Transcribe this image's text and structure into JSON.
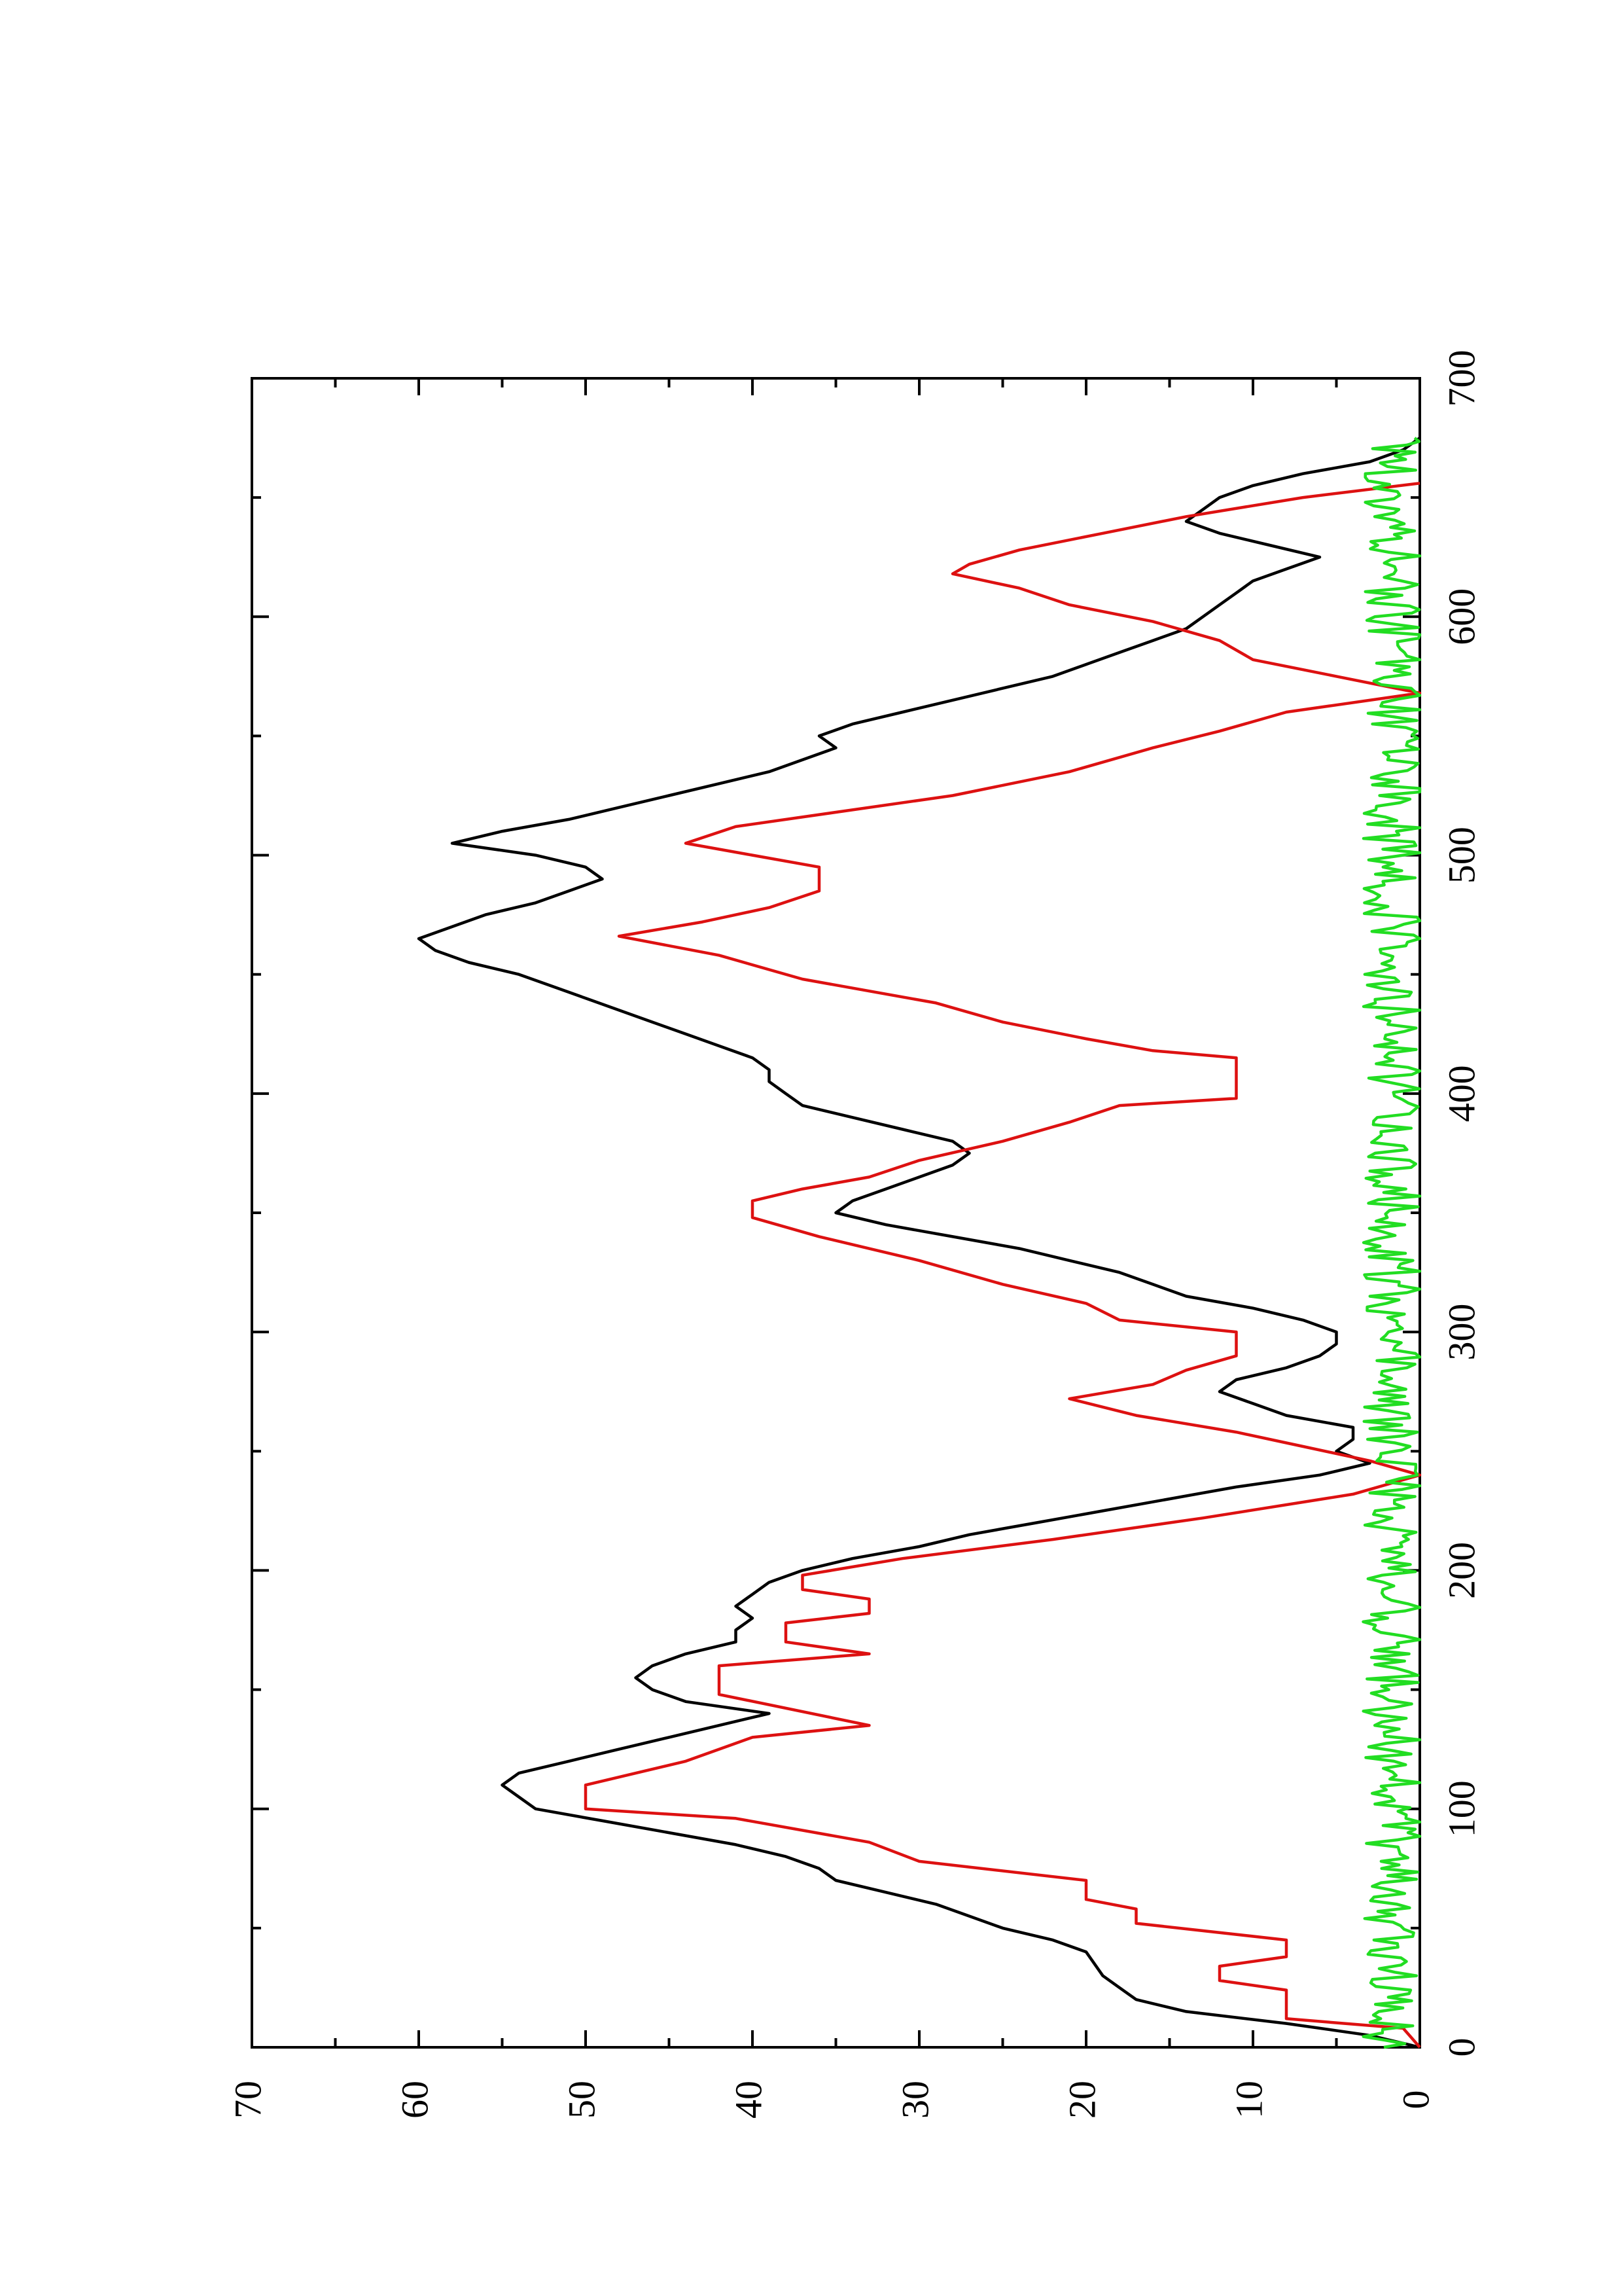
{
  "chart_data": {
    "type": "line",
    "orientation": "rotated-90-ccw",
    "title": "",
    "xlabel": "",
    "ylabel": "",
    "xlim": [
      0,
      700
    ],
    "ylim": [
      0,
      70
    ],
    "x_ticks": [
      "0",
      "100",
      "200",
      "300",
      "400",
      "500",
      "600",
      "700"
    ],
    "y_ticks": [
      "0",
      "10",
      "20",
      "30",
      "40",
      "50",
      "60",
      "70"
    ],
    "grid": false,
    "legend": "none",
    "series": [
      {
        "color": "#000000",
        "points": [
          [
            0,
            0
          ],
          [
            5,
            3
          ],
          [
            10,
            8
          ],
          [
            15,
            14
          ],
          [
            20,
            17
          ],
          [
            25,
            18
          ],
          [
            30,
            19
          ],
          [
            40,
            20
          ],
          [
            45,
            22
          ],
          [
            50,
            25
          ],
          [
            55,
            27
          ],
          [
            60,
            29
          ],
          [
            65,
            32
          ],
          [
            70,
            35
          ],
          [
            75,
            36
          ],
          [
            80,
            38
          ],
          [
            85,
            41
          ],
          [
            90,
            45
          ],
          [
            95,
            49
          ],
          [
            100,
            53
          ],
          [
            105,
            54
          ],
          [
            110,
            55
          ],
          [
            115,
            54
          ],
          [
            120,
            51
          ],
          [
            125,
            48
          ],
          [
            130,
            45
          ],
          [
            135,
            42
          ],
          [
            140,
            39
          ],
          [
            145,
            44
          ],
          [
            150,
            46
          ],
          [
            155,
            47
          ],
          [
            160,
            46
          ],
          [
            165,
            44
          ],
          [
            170,
            41
          ],
          [
            175,
            41
          ],
          [
            180,
            40
          ],
          [
            185,
            41
          ],
          [
            190,
            40
          ],
          [
            195,
            39
          ],
          [
            200,
            37
          ],
          [
            205,
            34
          ],
          [
            210,
            30
          ],
          [
            215,
            27
          ],
          [
            220,
            23
          ],
          [
            225,
            19
          ],
          [
            230,
            15
          ],
          [
            235,
            11
          ],
          [
            240,
            6
          ],
          [
            245,
            3
          ],
          [
            250,
            5
          ],
          [
            255,
            4
          ],
          [
            260,
            4
          ],
          [
            265,
            8
          ],
          [
            270,
            10
          ],
          [
            275,
            12
          ],
          [
            280,
            11
          ],
          [
            285,
            8
          ],
          [
            290,
            6
          ],
          [
            295,
            5
          ],
          [
            300,
            5
          ],
          [
            305,
            7
          ],
          [
            310,
            10
          ],
          [
            315,
            14
          ],
          [
            320,
            16
          ],
          [
            325,
            18
          ],
          [
            330,
            21
          ],
          [
            335,
            24
          ],
          [
            340,
            28
          ],
          [
            345,
            32
          ],
          [
            350,
            35
          ],
          [
            355,
            34
          ],
          [
            360,
            32
          ],
          [
            365,
            30
          ],
          [
            370,
            28
          ],
          [
            375,
            27
          ],
          [
            380,
            28
          ],
          [
            385,
            31
          ],
          [
            390,
            34
          ],
          [
            395,
            37
          ],
          [
            400,
            38
          ],
          [
            405,
            39
          ],
          [
            410,
            39
          ],
          [
            415,
            40
          ],
          [
            420,
            42
          ],
          [
            425,
            44
          ],
          [
            430,
            46
          ],
          [
            435,
            48
          ],
          [
            440,
            50
          ],
          [
            445,
            52
          ],
          [
            450,
            54
          ],
          [
            455,
            57
          ],
          [
            460,
            59
          ],
          [
            465,
            60
          ],
          [
            470,
            58
          ],
          [
            475,
            56
          ],
          [
            480,
            53
          ],
          [
            485,
            51
          ],
          [
            490,
            49
          ],
          [
            495,
            50
          ],
          [
            500,
            53
          ],
          [
            505,
            58
          ],
          [
            510,
            55
          ],
          [
            515,
            51
          ],
          [
            520,
            48
          ],
          [
            525,
            45
          ],
          [
            530,
            42
          ],
          [
            535,
            39
          ],
          [
            540,
            37
          ],
          [
            545,
            35
          ],
          [
            550,
            36
          ],
          [
            555,
            34
          ],
          [
            560,
            31
          ],
          [
            565,
            28
          ],
          [
            570,
            25
          ],
          [
            575,
            22
          ],
          [
            580,
            20
          ],
          [
            585,
            18
          ],
          [
            590,
            16
          ],
          [
            595,
            14
          ],
          [
            600,
            13
          ],
          [
            605,
            12
          ],
          [
            610,
            11
          ],
          [
            615,
            10
          ],
          [
            620,
            8
          ],
          [
            625,
            6
          ],
          [
            630,
            9
          ],
          [
            635,
            12
          ],
          [
            640,
            14
          ],
          [
            645,
            13
          ],
          [
            650,
            12
          ],
          [
            655,
            10
          ],
          [
            660,
            7
          ],
          [
            665,
            3
          ],
          [
            670,
            1
          ],
          [
            675,
            0
          ]
        ]
      },
      {
        "color": "#dd1111",
        "points": [
          [
            0,
            0
          ],
          [
            8,
            1
          ],
          [
            12,
            8
          ],
          [
            24,
            8
          ],
          [
            28,
            12
          ],
          [
            34,
            12
          ],
          [
            38,
            8
          ],
          [
            45,
            8
          ],
          [
            52,
            17
          ],
          [
            58,
            17
          ],
          [
            62,
            20
          ],
          [
            70,
            20
          ],
          [
            78,
            30
          ],
          [
            86,
            33
          ],
          [
            96,
            41
          ],
          [
            100,
            50
          ],
          [
            110,
            50
          ],
          [
            120,
            44
          ],
          [
            130,
            40
          ],
          [
            135,
            33
          ],
          [
            148,
            42
          ],
          [
            160,
            42
          ],
          [
            165,
            33
          ],
          [
            170,
            38
          ],
          [
            178,
            38
          ],
          [
            182,
            33
          ],
          [
            188,
            33
          ],
          [
            192,
            37
          ],
          [
            198,
            37
          ],
          [
            205,
            31
          ],
          [
            213,
            22
          ],
          [
            222,
            13
          ],
          [
            232,
            4
          ],
          [
            240,
            0
          ],
          [
            246,
            3
          ],
          [
            252,
            7
          ],
          [
            258,
            11
          ],
          [
            265,
            17
          ],
          [
            272,
            21
          ],
          [
            278,
            16
          ],
          [
            284,
            14
          ],
          [
            290,
            11
          ],
          [
            300,
            11
          ],
          [
            305,
            18
          ],
          [
            312,
            20
          ],
          [
            320,
            25
          ],
          [
            330,
            30
          ],
          [
            340,
            36
          ],
          [
            348,
            40
          ],
          [
            355,
            40
          ],
          [
            360,
            37
          ],
          [
            365,
            33
          ],
          [
            372,
            30
          ],
          [
            380,
            25
          ],
          [
            388,
            21
          ],
          [
            395,
            18
          ],
          [
            398,
            11
          ],
          [
            415,
            11
          ],
          [
            418,
            16
          ],
          [
            423,
            20
          ],
          [
            430,
            25
          ],
          [
            438,
            29
          ],
          [
            448,
            37
          ],
          [
            458,
            42
          ],
          [
            466,
            48
          ],
          [
            472,
            43
          ],
          [
            478,
            39
          ],
          [
            485,
            36
          ],
          [
            495,
            36
          ],
          [
            500,
            40
          ],
          [
            505,
            44
          ],
          [
            512,
            41
          ],
          [
            518,
            35
          ],
          [
            525,
            28
          ],
          [
            535,
            21
          ],
          [
            545,
            16
          ],
          [
            552,
            12
          ],
          [
            560,
            8
          ],
          [
            568,
            0
          ],
          [
            575,
            5
          ],
          [
            582,
            10
          ],
          [
            590,
            12
          ],
          [
            598,
            16
          ],
          [
            605,
            21
          ],
          [
            612,
            24
          ],
          [
            618,
            28
          ],
          [
            622,
            27
          ],
          [
            628,
            24
          ],
          [
            635,
            19
          ],
          [
            642,
            14
          ],
          [
            650,
            7
          ],
          [
            656,
            0
          ]
        ]
      },
      {
        "color": "#22dd22",
        "baseline": 1.6,
        "noise_amplitude": 1.8,
        "x_range": [
          0,
          675
        ]
      }
    ]
  }
}
